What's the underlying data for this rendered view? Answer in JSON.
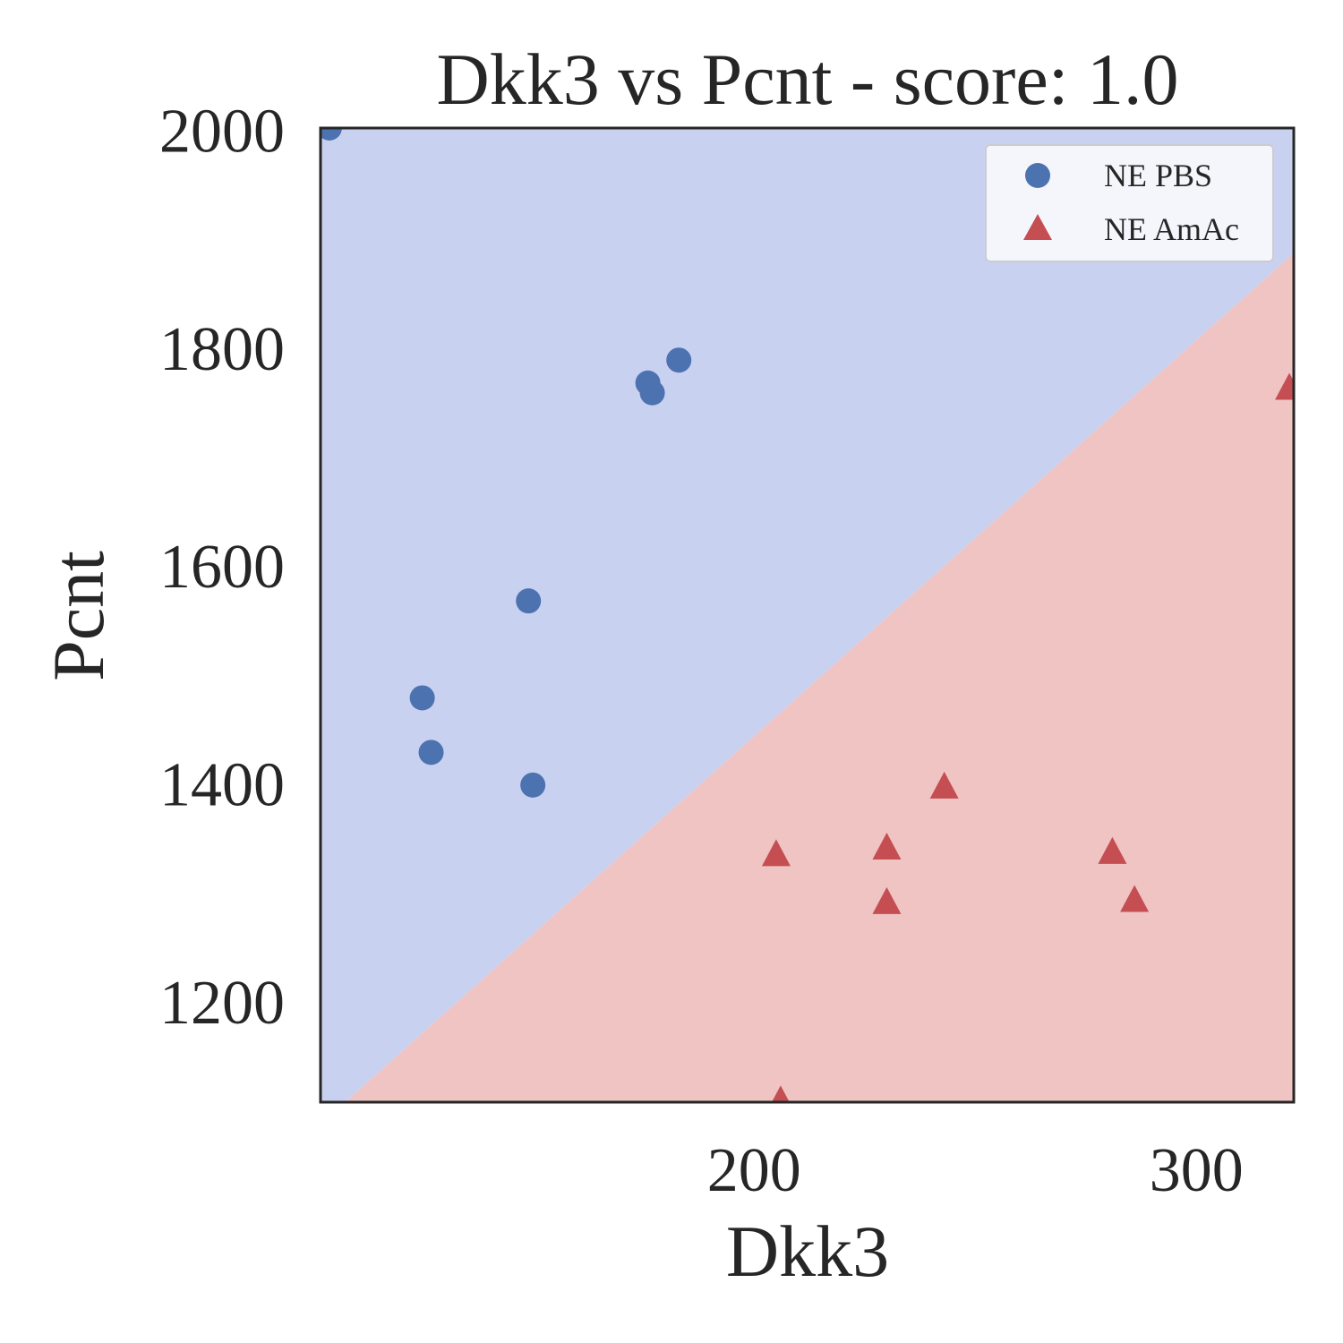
{
  "colors": {
    "class0_region": "#c9d1f0",
    "class1_region": "#efc4c3",
    "pbs_marker": "#4c72b0",
    "amac_marker": "#c44e52",
    "axes_frame": "#262626"
  },
  "chart_data": {
    "type": "scatter",
    "title": "Dkk3 vs Pcnt - score: 1.0",
    "xlabel": "Dkk3",
    "ylabel": "Pcnt",
    "xlim": [
      102,
      322
    ],
    "ylim": [
      1108,
      2002
    ],
    "xticks": [
      200,
      300
    ],
    "xtick_labels": [
      "200",
      "300"
    ],
    "yticks": [
      1200,
      1400,
      1600,
      1800,
      2000
    ],
    "ytick_labels": [
      "1200",
      "1400",
      "1600",
      "1800",
      "2000"
    ],
    "grid": false,
    "legend_position": "top-right",
    "decision_boundary": {
      "x": [
        102,
        322
      ],
      "y": [
        1084,
        1891
      ],
      "above_class": "NE PBS",
      "below_class": "NE AmAc"
    },
    "series": [
      {
        "name": "NE PBS",
        "marker": "circle",
        "x": [
          104,
          125,
          127,
          149,
          150,
          176,
          177,
          183
        ],
        "y": [
          2002,
          1479,
          1429,
          1568,
          1399,
          1768,
          1759,
          1789
        ]
      },
      {
        "name": "NE AmAc",
        "marker": "triangle",
        "x": [
          205,
          206,
          230,
          230,
          243,
          281,
          286,
          321
        ],
        "y": [
          1334,
          1108,
          1340,
          1290,
          1396,
          1336,
          1292,
          1762
        ]
      }
    ]
  }
}
